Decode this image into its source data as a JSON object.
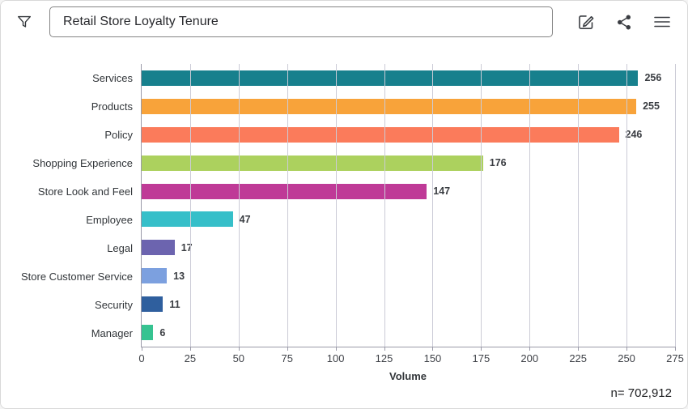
{
  "header": {
    "title_value": "Retail Store Loyalty Tenure",
    "filter_icon": "funnel-icon",
    "actions": [
      {
        "id": "edit",
        "icon": "edit-icon"
      },
      {
        "id": "share",
        "icon": "share-icon"
      },
      {
        "id": "menu",
        "icon": "menu-icon"
      }
    ]
  },
  "chart_data": {
    "type": "bar",
    "orientation": "horizontal",
    "title": "Retail Store Loyalty Tenure",
    "categories": [
      "Services",
      "Products",
      "Policy",
      "Shopping Experience",
      "Store Look and Feel",
      "Employee",
      "Legal",
      "Store Customer Service",
      "Security",
      "Manager"
    ],
    "values": [
      256,
      255,
      246,
      176,
      147,
      47,
      17,
      13,
      11,
      6
    ],
    "colors": [
      "#17808D",
      "#F8A33A",
      "#FB7B5B",
      "#ACD15E",
      "#BF3A97",
      "#36BFC9",
      "#6C64AF",
      "#7CA0DF",
      "#2F5F9E",
      "#36C391"
    ],
    "xlabel": "Volume",
    "x_ticks": [
      0,
      25,
      50,
      75,
      100,
      125,
      150,
      175,
      200,
      225,
      250,
      275
    ],
    "xlim": [
      0,
      275
    ],
    "grid": true,
    "value_labels": true,
    "legend": "none"
  },
  "footer": {
    "sample_size_label": "n= 702,912"
  }
}
